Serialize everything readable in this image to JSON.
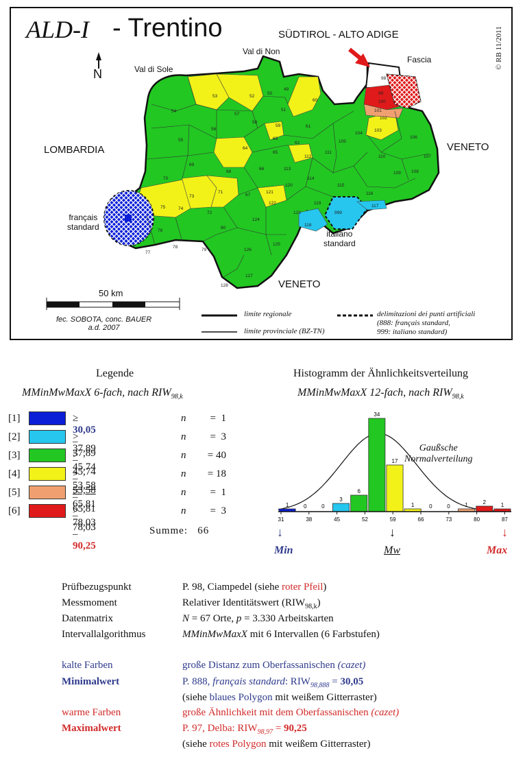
{
  "map": {
    "logo": "ALD-I",
    "title": "- Trentino",
    "copyright": "© RB 11/2011",
    "north": "N",
    "regions": {
      "suedtirol": "SÜDTIROL - ALTO ADIGE",
      "fascia": "Fascia",
      "lombardia": "LOMBARDIA",
      "veneto_east": "VENETO",
      "veneto_south": "VENETO",
      "val_di_sole": "Val di Sole",
      "val_di_non": "Val di Non"
    },
    "francais_label_1": "français",
    "francais_label_2": "standard",
    "italiano_label_1": "italiano",
    "italiano_label_2": "standard",
    "scale": "50 km",
    "credit_1": "fec. SOBOTA, conc. BAUER",
    "credit_2": "a.d. 2007",
    "key": {
      "regional": "limite regionale",
      "provincial": "limite provinciale (BZ-TN)",
      "artificial_1": "delimitazioni dei punti artificiali",
      "artificial_2": "(888: français standard,",
      "artificial_3": "999: italiano standard)"
    },
    "colors": {
      "c1": "#0b1fd6",
      "c2": "#26c6ee",
      "c3": "#22c722",
      "c4": "#f2f218",
      "c5": "#f0a070",
      "c6": "#e01a1a"
    },
    "cells": [
      {
        "n": "53",
        "c": 4
      },
      {
        "n": "52",
        "c": 4
      },
      {
        "n": "49",
        "c": 3
      },
      {
        "n": "50",
        "c": 3
      },
      {
        "n": "60",
        "c": 4
      },
      {
        "n": "54",
        "c": 3
      },
      {
        "n": "57",
        "c": 4
      },
      {
        "n": "58",
        "c": 4
      },
      {
        "n": "51",
        "c": 3
      },
      {
        "n": "59",
        "c": 3
      },
      {
        "n": "61",
        "c": 4
      },
      {
        "n": "55",
        "c": 3
      },
      {
        "n": "56",
        "c": 3
      },
      {
        "n": "63",
        "c": 4
      },
      {
        "n": "62",
        "c": 3
      },
      {
        "n": "64",
        "c": 3
      },
      {
        "n": "65",
        "c": 3
      },
      {
        "n": "112",
        "c": 4
      },
      {
        "n": "111",
        "c": 3
      },
      {
        "n": "105",
        "c": 3
      },
      {
        "n": "104",
        "c": 3
      },
      {
        "n": "103",
        "c": 4
      },
      {
        "n": "102",
        "c": 4
      },
      {
        "n": "101",
        "c": 5
      },
      {
        "n": "100",
        "c": 6
      },
      {
        "n": "99",
        "c": 6
      },
      {
        "n": "98",
        "c": 0
      },
      {
        "n": "106",
        "c": 3
      },
      {
        "n": "107",
        "c": 3
      },
      {
        "n": "108",
        "c": 3
      },
      {
        "n": "109",
        "c": 3
      },
      {
        "n": "110",
        "c": 3
      },
      {
        "n": "69",
        "c": 3
      },
      {
        "n": "68",
        "c": 4
      },
      {
        "n": "66",
        "c": 4
      },
      {
        "n": "113",
        "c": 3
      },
      {
        "n": "114",
        "c": 3
      },
      {
        "n": "115",
        "c": 3
      },
      {
        "n": "116",
        "c": 3
      },
      {
        "n": "70",
        "c": 3
      },
      {
        "n": "73",
        "c": 4
      },
      {
        "n": "71",
        "c": 4
      },
      {
        "n": "67",
        "c": 3
      },
      {
        "n": "121",
        "c": 3
      },
      {
        "n": "120",
        "c": 3
      },
      {
        "n": "122",
        "c": 4
      },
      {
        "n": "119",
        "c": 3
      },
      {
        "n": "117",
        "c": 2
      },
      {
        "n": "75",
        "c": 4
      },
      {
        "n": "74",
        "c": 4
      },
      {
        "n": "72",
        "c": 4
      },
      {
        "n": "123",
        "c": 3
      },
      {
        "n": "118",
        "c": 2
      },
      {
        "n": "76",
        "c": 3
      },
      {
        "n": "80",
        "c": 3
      },
      {
        "n": "124",
        "c": 3
      },
      {
        "n": "77",
        "c": 3
      },
      {
        "n": "78",
        "c": 3
      },
      {
        "n": "79",
        "c": 3
      },
      {
        "n": "126",
        "c": 3
      },
      {
        "n": "125",
        "c": 3
      },
      {
        "n": "127",
        "c": 3
      },
      {
        "n": "128",
        "c": 3
      },
      {
        "n": "999",
        "c": 2
      },
      {
        "n": "97",
        "c": 6
      }
    ]
  },
  "legend": {
    "title": "Legende",
    "subtitle": "MMinMwMaxX 6-fach, nach RIW",
    "sub_index": "98,k",
    "rows": [
      {
        "idx": "[1]",
        "range": "≥ 30,05 – 37,89",
        "n_label": "n",
        "eq": "=",
        "n": "1"
      },
      {
        "idx": "[2]",
        "range": "> 37,89 – 45,74",
        "n_label": "n",
        "eq": "=",
        "n": "3"
      },
      {
        "idx": "[3]",
        "range": "> 45,74 – 53,58",
        "n_label": "n",
        "eq": "=",
        "n": "40"
      },
      {
        "idx": "[4]",
        "range": "> 53,58 – 65,81",
        "n_label": "n",
        "eq": "=",
        "n": "18"
      },
      {
        "idx": "[5]",
        "range": "> 65,81 – 78,03",
        "n_label": "n",
        "eq": "=",
        "n": "1"
      },
      {
        "idx": "[6]",
        "range": "> 78,03 – 90,25",
        "n_label": "n",
        "eq": "=",
        "n": "3"
      }
    ],
    "sum_label": "Summe:",
    "sum_value": "66"
  },
  "histogram": {
    "title": "Histogramm der Ähnlichkeitsverteilung",
    "subtitle": "MMinMwMaxX 12-fach, nach RIW",
    "sub_index": "98,k",
    "gauss_1": "Gaußsche",
    "gauss_2": "Normalverteilung",
    "min": "Min",
    "mw": "Mw",
    "max": "Max",
    "arrow_down": "↓"
  },
  "chart_data": {
    "type": "bar",
    "title": "Histogramm der Ähnlichkeitsverteilung",
    "x_ticks": [
      "31",
      "38",
      "45",
      "52",
      "59",
      "66",
      "73",
      "80",
      "87"
    ],
    "bins": [
      {
        "count": 1,
        "color": "#0b1fd6"
      },
      {
        "count": 0,
        "color": "#0b1fd6"
      },
      {
        "count": 0,
        "color": "#26c6ee"
      },
      {
        "count": 3,
        "color": "#26c6ee"
      },
      {
        "count": 6,
        "color": "#22c722"
      },
      {
        "count": 34,
        "color": "#22c722"
      },
      {
        "count": 17,
        "color": "#f2f218"
      },
      {
        "count": 1,
        "color": "#f2f218"
      },
      {
        "count": 0,
        "color": "#f2f218"
      },
      {
        "count": 0,
        "color": "#f2f218"
      },
      {
        "count": 1,
        "color": "#f0a070"
      },
      {
        "count": 2,
        "color": "#e01a1a"
      },
      {
        "count": 1,
        "color": "#e01a1a"
      }
    ],
    "ylim": [
      0,
      36
    ]
  },
  "info": {
    "rows": [
      {
        "label": "Prüfbezugspunkt",
        "value": "P. 98, Ciampedel (siehe ",
        "value_red": "roter Pfeil",
        "value_end": ")"
      },
      {
        "label": "Messmoment",
        "value": "Relativer Identitätswert (RIW",
        "sub": "98,k",
        "value_end": ")"
      },
      {
        "label": "Datenmatrix",
        "value_n": "N",
        "value": " = 67 Orte, ",
        "value_p": "p",
        "value_end": " = 3.330 Arbeitskarten"
      },
      {
        "label": "Intervallalgorithmus",
        "value_it": "MMinMwMaxX",
        "value": " mit 6 Intervallen (6 Farbstufen)"
      }
    ],
    "kalte_label": "kalte Farben",
    "kalte_value": "große Distanz zum Oberfassanischen ",
    "kalte_it": "(cazet)",
    "min_label": "Minimalwert",
    "min_value": "P. 888, ",
    "min_it": "français standard",
    "min_value2": ": RIW",
    "min_sub": "98,888",
    "min_eq": " = ",
    "min_num": "30,05",
    "min_note_1": "(siehe ",
    "min_note_col": "blaues Polygon",
    "min_note_2": " mit weißem Gitterraster)",
    "warme_label": "warme Farben",
    "warme_value": "große Ähnlichkeit mit dem Oberfassanischen ",
    "warme_it": "(cazet)",
    "max_label": "Maximalwert",
    "max_value": "P. 97, Delba: RIW",
    "max_sub": "98,97",
    "max_eq": " = ",
    "max_num": "90,25",
    "max_note_1": "(siehe ",
    "max_note_col": "rotes Polygon",
    "max_note_2": " mit weißem Gitterraster)"
  }
}
